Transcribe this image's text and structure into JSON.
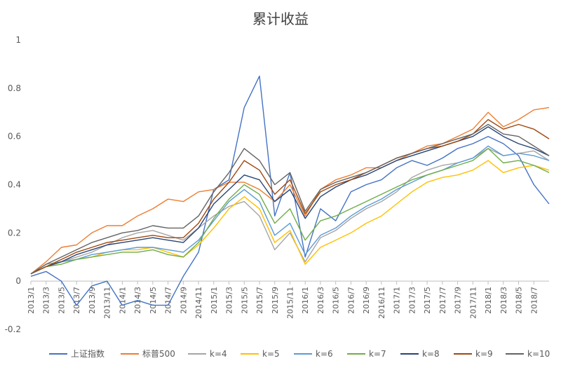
{
  "chart_data": {
    "type": "line",
    "title": "累计收益",
    "xlabel": "",
    "ylabel": "",
    "ylim": [
      -0.2,
      1.0
    ],
    "grid": false,
    "legend_position": "bottom",
    "y_ticks": [
      "-0.2",
      "0",
      "0.2",
      "0.4",
      "0.6",
      "0.8",
      "1"
    ],
    "x_ticks": [
      "2013/1",
      "2013/3",
      "2013/5",
      "2013/7",
      "2013/9",
      "2013/11",
      "2014/1",
      "2014/3",
      "2014/5",
      "2014/7",
      "2014/9",
      "2014/11",
      "2015/1",
      "2015/3",
      "2015/5",
      "2015/7",
      "2015/9",
      "2015/11",
      "2016/1",
      "2016/3",
      "2016/5",
      "2016/7",
      "2016/9",
      "2016/11",
      "2017/1",
      "2017/3",
      "2017/5",
      "2017/7",
      "2017/9",
      "2017/11",
      "2018/1",
      "2018/3",
      "2018/5",
      "2018/7"
    ],
    "x": [
      "2013/1",
      "2013/3",
      "2013/5",
      "2013/7",
      "2013/9",
      "2013/11",
      "2014/1",
      "2014/3",
      "2014/5",
      "2014/7",
      "2014/9",
      "2014/11",
      "2015/1",
      "2015/3",
      "2015/5",
      "2015/7",
      "2015/9",
      "2015/11",
      "2016/1",
      "2016/3",
      "2016/5",
      "2016/7",
      "2016/9",
      "2016/11",
      "2017/1",
      "2017/3",
      "2017/5",
      "2017/7",
      "2017/9",
      "2017/11",
      "2018/1",
      "2018/3",
      "2018/5",
      "2018/7",
      "2018/8"
    ],
    "series": [
      {
        "name": "上证指数",
        "color": "#4472C4",
        "values": [
          0.02,
          0.04,
          0.0,
          -0.1,
          -0.02,
          0.0,
          -0.1,
          -0.08,
          -0.1,
          -0.1,
          0.02,
          0.12,
          0.38,
          0.42,
          0.72,
          0.85,
          0.27,
          0.45,
          0.1,
          0.3,
          0.25,
          0.37,
          0.4,
          0.42,
          0.47,
          0.5,
          0.48,
          0.51,
          0.55,
          0.57,
          0.6,
          0.57,
          0.52,
          0.4,
          0.32
        ]
      },
      {
        "name": "标普500",
        "color": "#ED7D31",
        "values": [
          0.03,
          0.08,
          0.14,
          0.15,
          0.2,
          0.23,
          0.23,
          0.27,
          0.3,
          0.34,
          0.33,
          0.37,
          0.38,
          0.41,
          0.41,
          0.38,
          0.33,
          0.4,
          0.27,
          0.38,
          0.42,
          0.44,
          0.47,
          0.47,
          0.5,
          0.53,
          0.56,
          0.57,
          0.6,
          0.63,
          0.7,
          0.64,
          0.67,
          0.71,
          0.72
        ]
      },
      {
        "name": "k=4",
        "color": "#A5A5A5",
        "values": [
          0.03,
          0.07,
          0.08,
          0.1,
          0.12,
          0.15,
          0.18,
          0.2,
          0.21,
          0.19,
          0.17,
          0.22,
          0.27,
          0.31,
          0.33,
          0.27,
          0.13,
          0.2,
          0.08,
          0.18,
          0.21,
          0.26,
          0.3,
          0.33,
          0.37,
          0.43,
          0.46,
          0.48,
          0.49,
          0.51,
          0.55,
          0.52,
          0.53,
          0.54,
          0.5
        ]
      },
      {
        "name": "k=5",
        "color": "#FFC000",
        "values": [
          0.03,
          0.06,
          0.08,
          0.09,
          0.1,
          0.12,
          0.13,
          0.13,
          0.14,
          0.12,
          0.1,
          0.15,
          0.22,
          0.3,
          0.35,
          0.3,
          0.16,
          0.21,
          0.07,
          0.14,
          0.17,
          0.2,
          0.24,
          0.27,
          0.32,
          0.37,
          0.41,
          0.43,
          0.44,
          0.46,
          0.5,
          0.45,
          0.47,
          0.48,
          0.46
        ]
      },
      {
        "name": "k=6",
        "color": "#5B9BD5",
        "values": [
          0.03,
          0.06,
          0.08,
          0.09,
          0.11,
          0.12,
          0.13,
          0.14,
          0.14,
          0.13,
          0.12,
          0.17,
          0.25,
          0.33,
          0.38,
          0.33,
          0.19,
          0.24,
          0.11,
          0.19,
          0.22,
          0.27,
          0.31,
          0.34,
          0.38,
          0.41,
          0.44,
          0.46,
          0.49,
          0.51,
          0.56,
          0.52,
          0.53,
          0.52,
          0.5
        ]
      },
      {
        "name": "k=7",
        "color": "#70AD47",
        "values": [
          0.03,
          0.06,
          0.07,
          0.09,
          0.1,
          0.11,
          0.12,
          0.12,
          0.13,
          0.11,
          0.1,
          0.16,
          0.26,
          0.34,
          0.4,
          0.36,
          0.24,
          0.3,
          0.17,
          0.25,
          0.27,
          0.3,
          0.33,
          0.36,
          0.39,
          0.42,
          0.44,
          0.46,
          0.48,
          0.5,
          0.55,
          0.49,
          0.5,
          0.48,
          0.45
        ]
      },
      {
        "name": "k=8",
        "color": "#264478",
        "values": [
          0.03,
          0.06,
          0.08,
          0.11,
          0.13,
          0.15,
          0.16,
          0.17,
          0.18,
          0.17,
          0.16,
          0.22,
          0.32,
          0.38,
          0.44,
          0.42,
          0.33,
          0.38,
          0.26,
          0.35,
          0.39,
          0.42,
          0.44,
          0.47,
          0.5,
          0.52,
          0.54,
          0.56,
          0.58,
          0.6,
          0.64,
          0.6,
          0.57,
          0.55,
          0.52
        ]
      },
      {
        "name": "k=9",
        "color": "#9E480E",
        "values": [
          0.03,
          0.06,
          0.09,
          0.12,
          0.14,
          0.16,
          0.17,
          0.18,
          0.19,
          0.18,
          0.18,
          0.24,
          0.34,
          0.41,
          0.5,
          0.46,
          0.36,
          0.42,
          0.28,
          0.37,
          0.4,
          0.42,
          0.45,
          0.48,
          0.51,
          0.53,
          0.55,
          0.56,
          0.58,
          0.61,
          0.67,
          0.63,
          0.65,
          0.63,
          0.59
        ]
      },
      {
        "name": "k=10",
        "color": "#636363",
        "values": [
          0.03,
          0.07,
          0.1,
          0.13,
          0.16,
          0.18,
          0.2,
          0.21,
          0.23,
          0.22,
          0.22,
          0.27,
          0.37,
          0.45,
          0.55,
          0.5,
          0.4,
          0.45,
          0.29,
          0.38,
          0.41,
          0.43,
          0.45,
          0.48,
          0.51,
          0.53,
          0.55,
          0.57,
          0.59,
          0.61,
          0.65,
          0.61,
          0.6,
          0.56,
          0.52
        ]
      }
    ]
  }
}
